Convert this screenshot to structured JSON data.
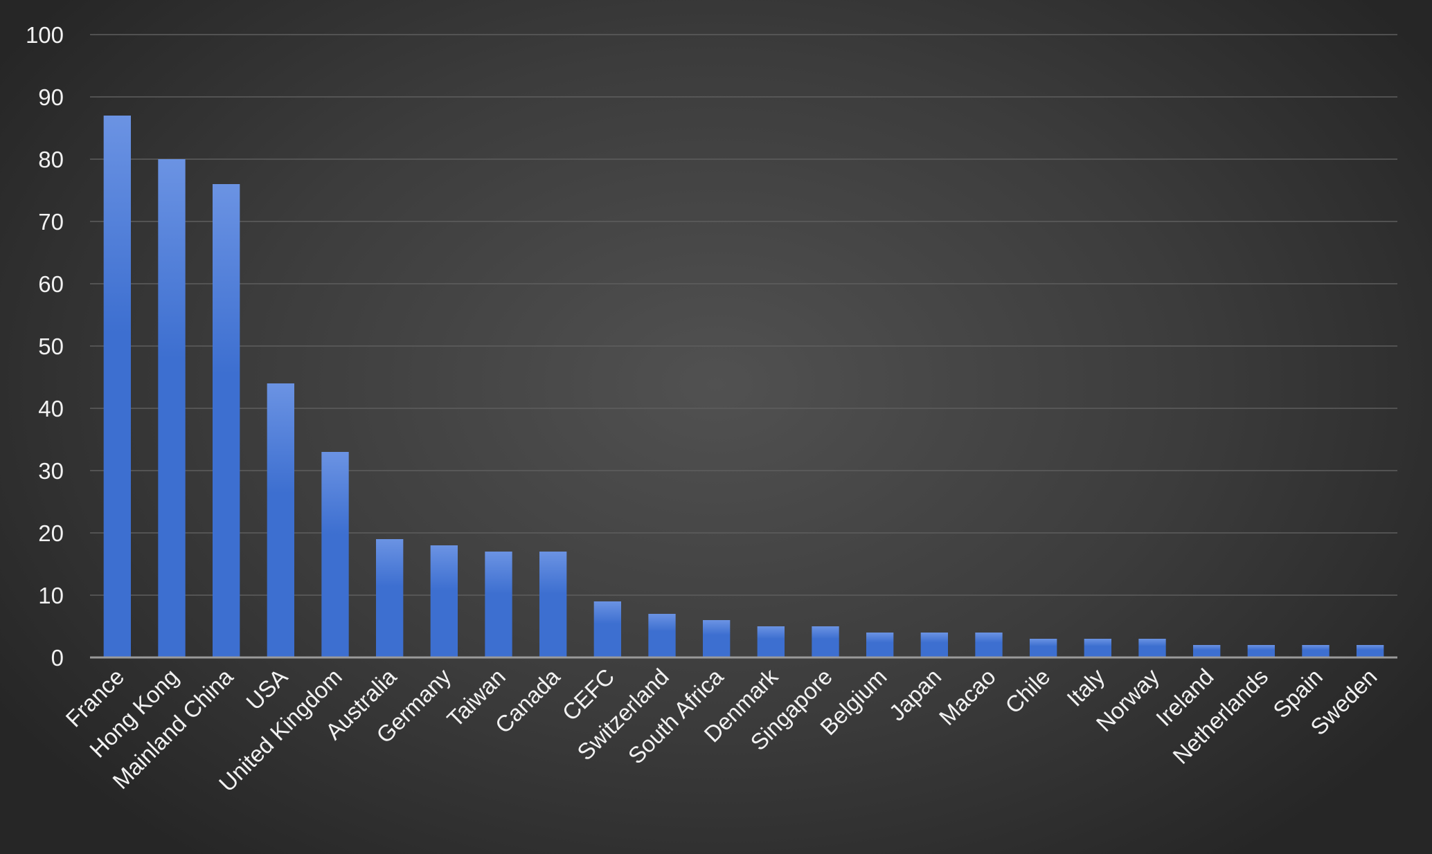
{
  "chart_data": {
    "type": "bar",
    "title": "",
    "xlabel": "",
    "ylabel": "",
    "ylim": [
      0,
      100
    ],
    "yticks": [
      0,
      10,
      20,
      30,
      40,
      50,
      60,
      70,
      80,
      90,
      100
    ],
    "grid": true,
    "legend": "none",
    "bar_color": "#3d6fd0",
    "bar_color_light": "#6b93e3",
    "categories": [
      "France",
      "Hong Kong",
      "Mainland China",
      "USA",
      "United Kingdom",
      "Australia",
      "Germany",
      "Taiwan",
      "Canada",
      "CEFC",
      "Switzerland",
      "South Africa",
      "Denmark",
      "Singapore",
      "Belgium",
      "Japan",
      "Macao",
      "Chile",
      "Italy",
      "Norway",
      "Ireland",
      "Netherlands",
      "Spain",
      "Sweden"
    ],
    "values": [
      87,
      80,
      76,
      44,
      33,
      19,
      18,
      17,
      17,
      9,
      7,
      6,
      5,
      5,
      4,
      4,
      4,
      3,
      3,
      3,
      2,
      2,
      2,
      2
    ]
  }
}
